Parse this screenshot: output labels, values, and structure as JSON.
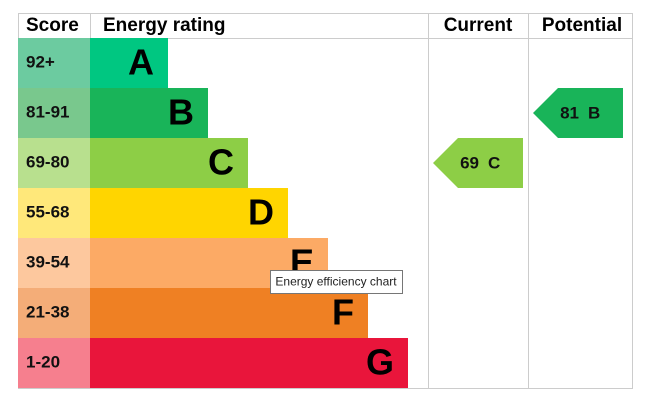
{
  "headers": {
    "score": "Score",
    "rating": "Energy rating",
    "current": "Current",
    "potential": "Potential"
  },
  "bands": [
    {
      "score": "92+",
      "letter": "A",
      "color": "#00c781",
      "score_color": "#6ccba0"
    },
    {
      "score": "81-91",
      "letter": "B",
      "color": "#19b459",
      "score_color": "#79c88d"
    },
    {
      "score": "69-80",
      "letter": "C",
      "color": "#8dce46",
      "score_color": "#b8e08e"
    },
    {
      "score": "55-68",
      "letter": "D",
      "color": "#ffd500",
      "score_color": "#ffe87a"
    },
    {
      "score": "39-54",
      "letter": "E",
      "color": "#fcaa65",
      "score_color": "#fdc89e"
    },
    {
      "score": "21-38",
      "letter": "F",
      "color": "#ef8023",
      "score_color": "#f4ad78"
    },
    {
      "score": "1-20",
      "letter": "G",
      "color": "#e9153b",
      "score_color": "#f67f8e"
    }
  ],
  "current": {
    "value": "69",
    "letter": "C"
  },
  "potential": {
    "value": "81",
    "letter": "B"
  },
  "tooltip": "Energy efficiency chart"
}
